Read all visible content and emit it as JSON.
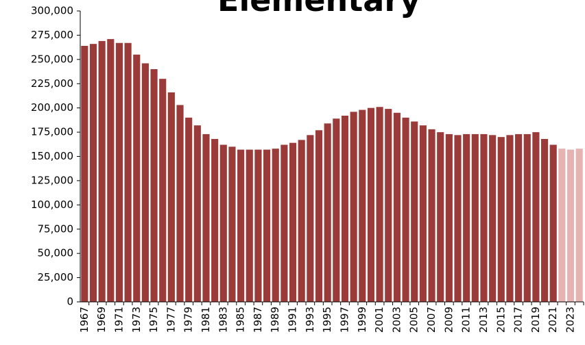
{
  "chart_data": {
    "type": "bar",
    "title": "Elementary",
    "categories": [
      "1967",
      null,
      "1969",
      null,
      "1971",
      null,
      "1973",
      null,
      "1975",
      null,
      "1977",
      null,
      "1979",
      null,
      "1981",
      null,
      "1983",
      null,
      "1985",
      null,
      "1987",
      null,
      "1989",
      null,
      "1991",
      null,
      "1993",
      null,
      "1995",
      null,
      "1997",
      null,
      "1999",
      null,
      "2001",
      null,
      "2003",
      null,
      "2005",
      null,
      "2007",
      null,
      "2009",
      null,
      "2011",
      null,
      "2013",
      null,
      "2015",
      null,
      "2017",
      null,
      "2019",
      null,
      "2021",
      null,
      "2023",
      null
    ],
    "values": [
      264000,
      266000,
      269000,
      271000,
      267000,
      267000,
      255000,
      246000,
      240000,
      230000,
      216000,
      203000,
      190000,
      182000,
      173000,
      168000,
      162000,
      160000,
      157000,
      157000,
      157000,
      157000,
      158000,
      162000,
      164000,
      167000,
      172000,
      177000,
      184000,
      189000,
      192000,
      196000,
      198000,
      200000,
      201000,
      199000,
      195000,
      190000,
      186000,
      182000,
      178000,
      175000,
      173000,
      172000,
      173000,
      173000,
      173000,
      172000,
      170000,
      172000,
      173000,
      173000,
      175000,
      168000,
      162000,
      158000,
      157000,
      158000
    ],
    "colors": [
      "#9b3b39",
      "#9b3b39",
      "#9b3b39",
      "#9b3b39",
      "#9b3b39",
      "#9b3b39",
      "#9b3b39",
      "#9b3b39",
      "#9b3b39",
      "#9b3b39",
      "#9b3b39",
      "#9b3b39",
      "#9b3b39",
      "#9b3b39",
      "#9b3b39",
      "#9b3b39",
      "#9b3b39",
      "#9b3b39",
      "#9b3b39",
      "#9b3b39",
      "#9b3b39",
      "#9b3b39",
      "#9b3b39",
      "#9b3b39",
      "#9b3b39",
      "#9b3b39",
      "#9b3b39",
      "#9b3b39",
      "#9b3b39",
      "#9b3b39",
      "#9b3b39",
      "#9b3b39",
      "#9b3b39",
      "#9b3b39",
      "#9b3b39",
      "#9b3b39",
      "#9b3b39",
      "#9b3b39",
      "#9b3b39",
      "#9b3b39",
      "#9b3b39",
      "#9b3b39",
      "#9b3b39",
      "#9b3b39",
      "#9b3b39",
      "#9b3b39",
      "#9b3b39",
      "#9b3b39",
      "#9b3b39",
      "#9b3b39",
      "#9b3b39",
      "#9b3b39",
      "#9b3b39",
      "#9b3b39",
      "#9b3b39",
      "#e6b3b3",
      "#e6b3b3",
      "#e6b3b3"
    ],
    "ylim": [
      0,
      300000
    ],
    "yticks": [
      0,
      {
        "value": 25000,
        "label": "25,000"
      },
      {
        "value": 50000,
        "label": "50,000"
      },
      {
        "value": 75000,
        "label": "75,000"
      },
      {
        "value": 100000,
        "label": "100,000"
      },
      {
        "value": 125000,
        "label": "125,000"
      },
      {
        "value": 150000,
        "label": "150,000"
      },
      {
        "value": 175000,
        "label": "175,000"
      },
      {
        "value": 200000,
        "label": "200,000"
      },
      {
        "value": 225000,
        "label": "225,000"
      },
      {
        "value": 250000,
        "label": "250,000"
      },
      {
        "value": 275000,
        "label": "275,000"
      },
      {
        "value": 300000,
        "label": "300,000"
      }
    ],
    "grid": false
  }
}
